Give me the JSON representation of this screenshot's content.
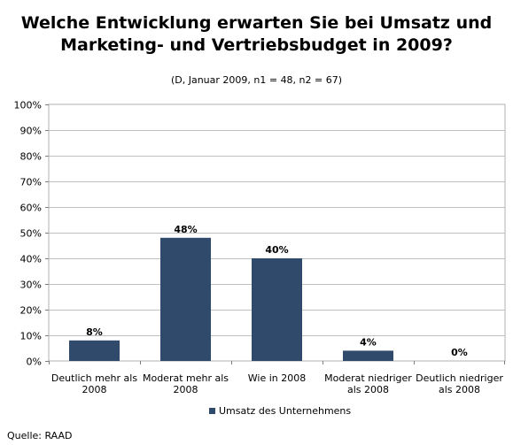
{
  "chart_data": {
    "type": "bar",
    "title_lines": [
      "Welche Entwicklung erwarten Sie bei Umsatz und",
      "Marketing- und Vertriebsbudget in 2009?"
    ],
    "subtitle": "(D, Januar  2009, n1 = 48, n2 = 67)",
    "categories": [
      [
        "Deutlich mehr als",
        "2008"
      ],
      [
        "Moderat mehr als",
        "2008"
      ],
      [
        "Wie in 2008"
      ],
      [
        "Moderat niedriger",
        "als 2008"
      ],
      [
        "Deutlich niedriger",
        "als 2008"
      ]
    ],
    "series": [
      {
        "name": "Umsatz des Unternehmens",
        "values": [
          8,
          48,
          40,
          4,
          0
        ],
        "labels": [
          "8%",
          "48%",
          "40%",
          "4%",
          "0%"
        ],
        "color": "#2f4a6b"
      }
    ],
    "ylim": [
      0,
      100
    ],
    "yticks": [
      "0%",
      "10%",
      "20%",
      "30%",
      "40%",
      "50%",
      "60%",
      "70%",
      "80%",
      "90%",
      "100%"
    ],
    "grid": true,
    "legend_position": "bottom"
  },
  "source": "Quelle: RAAD"
}
